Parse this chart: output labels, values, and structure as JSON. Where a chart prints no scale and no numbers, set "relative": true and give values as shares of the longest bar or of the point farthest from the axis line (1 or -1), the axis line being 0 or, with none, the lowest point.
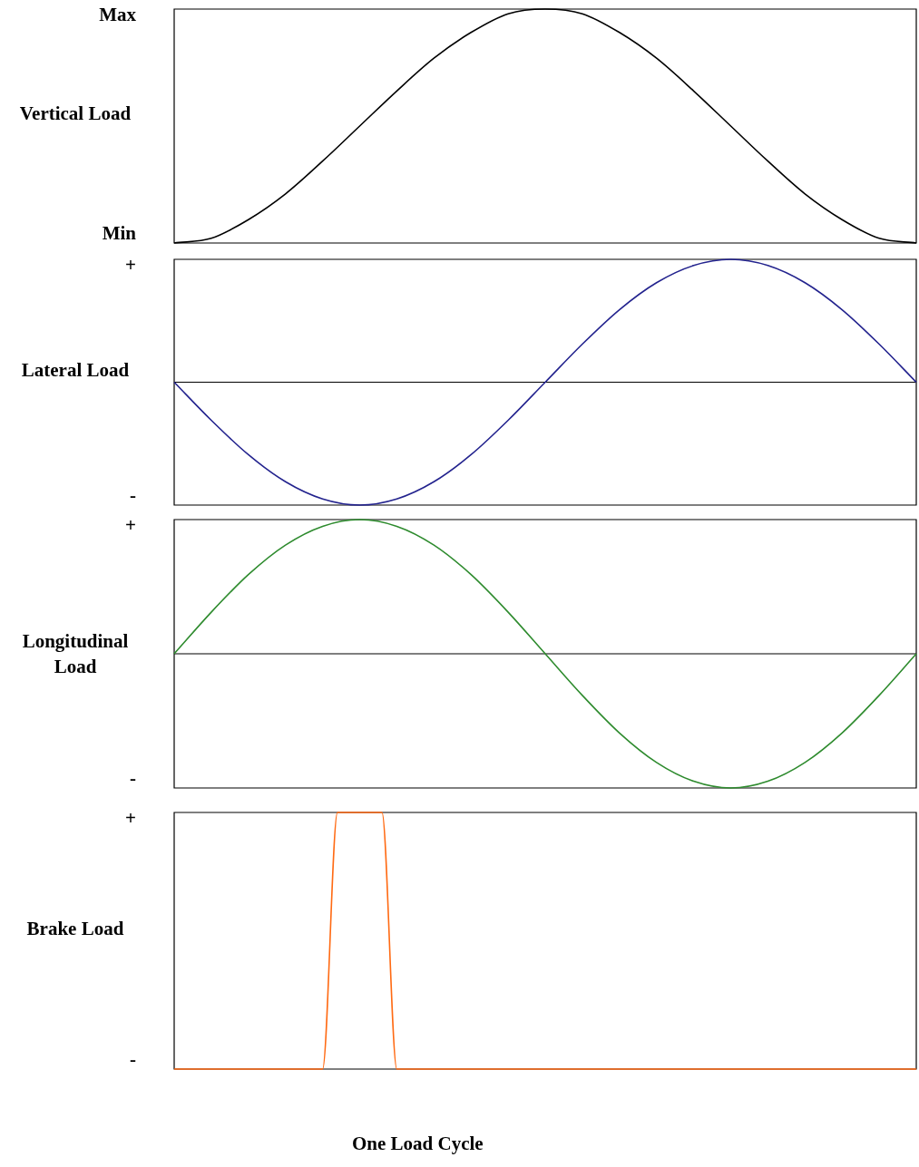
{
  "chart_data": [
    {
      "type": "line",
      "ylabel": "Vertical Load",
      "annotations": [
        "Max",
        "Min"
      ],
      "relative": true,
      "tick_labels": false,
      "categories": [
        null,
        null,
        null,
        null,
        null,
        null,
        null,
        null,
        null,
        null,
        null,
        null,
        null,
        null,
        null,
        null,
        null,
        null,
        null,
        null,
        null
      ],
      "series": [
        {
          "color": "#000000",
          "values": [
            0,
            0.02,
            0.1,
            0.21,
            0.35,
            0.5,
            0.65,
            0.79,
            0.9,
            0.98,
            1,
            0.98,
            0.9,
            0.79,
            0.65,
            0.5,
            0.35,
            0.21,
            0.1,
            0.02,
            0
          ]
        }
      ]
    },
    {
      "type": "line",
      "ylabel": "Lateral Load",
      "annotations": [
        "+",
        "-"
      ],
      "relative": true,
      "tick_labels": false,
      "ref_lines": [
        {
          "axis": "y",
          "value": 0,
          "color": "#000000"
        }
      ],
      "categories": [
        null,
        null,
        null,
        null,
        null,
        null,
        null,
        null,
        null,
        null,
        null,
        null,
        null,
        null,
        null,
        null,
        null,
        null,
        null,
        null,
        null
      ],
      "series": [
        {
          "color": "#23238e",
          "values": [
            0,
            -0.31,
            -0.59,
            -0.81,
            -0.95,
            -1,
            -0.95,
            -0.81,
            -0.59,
            -0.31,
            0,
            0.31,
            0.59,
            0.81,
            0.95,
            1,
            0.95,
            0.81,
            0.59,
            0.31,
            0
          ]
        }
      ]
    },
    {
      "type": "line",
      "ylabel": "Longitudinal Load",
      "annotations": [
        "+",
        "-"
      ],
      "relative": true,
      "tick_labels": false,
      "ref_lines": [
        {
          "axis": "y",
          "value": 0,
          "color": "#000000"
        }
      ],
      "categories": [
        null,
        null,
        null,
        null,
        null,
        null,
        null,
        null,
        null,
        null,
        null,
        null,
        null,
        null,
        null,
        null,
        null,
        null,
        null,
        null,
        null
      ],
      "series": [
        {
          "color": "#2e8b2e",
          "values": [
            0,
            0.31,
            0.59,
            0.81,
            0.95,
            1,
            0.95,
            0.81,
            0.59,
            0.31,
            0,
            -0.31,
            -0.59,
            -0.81,
            -0.95,
            -1,
            -0.95,
            -0.81,
            -0.59,
            -0.31,
            0
          ]
        }
      ]
    },
    {
      "type": "line",
      "ylabel": "Brake Load",
      "xlabel": "One Load Cycle",
      "annotations": [
        "+",
        "-"
      ],
      "relative": true,
      "tick_labels": false,
      "categories": [
        null,
        null,
        null,
        null,
        null,
        null,
        null,
        null,
        null,
        null,
        null,
        null,
        null,
        null,
        null,
        null,
        null,
        null,
        null,
        null,
        null,
        null,
        null,
        null,
        null,
        null,
        null,
        null,
        null,
        null,
        null,
        null,
        null,
        null,
        null,
        null,
        null,
        null,
        null,
        null,
        null,
        null,
        null,
        null,
        null,
        null,
        null,
        null,
        null,
        null,
        null
      ],
      "series": [
        {
          "color": "#ff6a13",
          "values": [
            0,
            0,
            0,
            0,
            0,
            0,
            0,
            0,
            0,
            0,
            0,
            1,
            1,
            1,
            1,
            0,
            0,
            0,
            0,
            0,
            0,
            0,
            0,
            0,
            0,
            0,
            0,
            0,
            0,
            0,
            0,
            0,
            0,
            0,
            0,
            0,
            0,
            0,
            0,
            0,
            0,
            0,
            0,
            0,
            0,
            0,
            0,
            0,
            0,
            0,
            0
          ]
        }
      ]
    }
  ]
}
